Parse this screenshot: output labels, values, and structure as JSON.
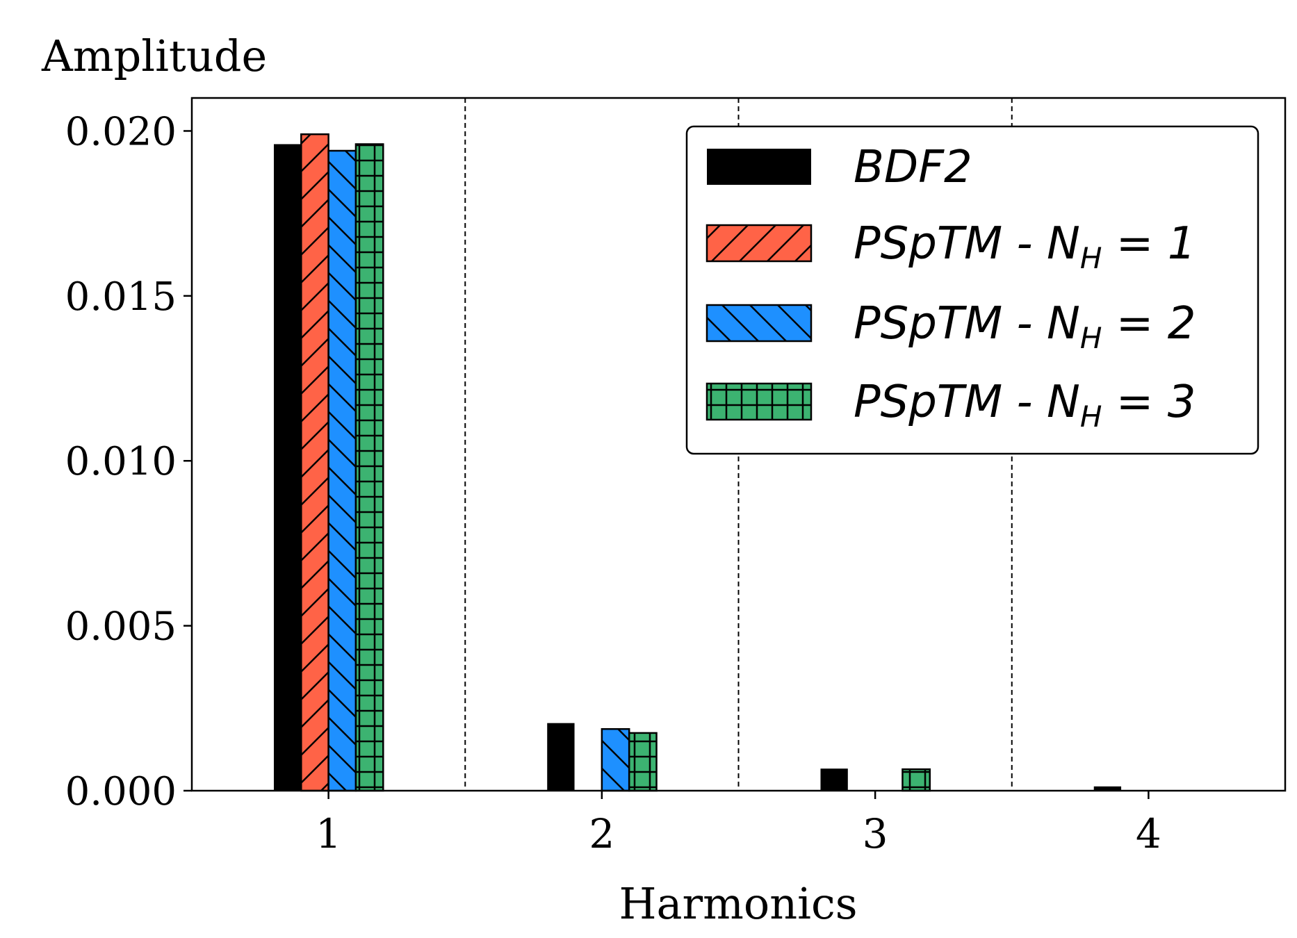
{
  "chart_data": {
    "type": "bar",
    "ylabel": "Amplitude",
    "xlabel": "Harmonics",
    "categories": [
      "1",
      "2",
      "3",
      "4"
    ],
    "xlim": [
      0.5,
      4.5
    ],
    "ylim": [
      0,
      0.021
    ],
    "yticks": [
      "0.000",
      "0.005",
      "0.010",
      "0.015",
      "0.020"
    ],
    "ytick_values": [
      0,
      0.005,
      0.01,
      0.015,
      0.02
    ],
    "grid": "dashed vertical separators between harmonics",
    "legend_position": "top-right",
    "series": [
      {
        "name": "BDF2",
        "color": "#000000",
        "hatch": "none",
        "values": [
          0.0196,
          0.00205,
          0.00067,
          0.00013
        ]
      },
      {
        "name": "PSpTM - N_H = 1",
        "color": "#ff6347",
        "hatch": "forward-diagonal",
        "values": [
          0.0199,
          0.0,
          0.0,
          0.0
        ]
      },
      {
        "name": "PSpTM - N_H = 2",
        "color": "#1e90ff",
        "hatch": "back-diagonal",
        "values": [
          0.0194,
          0.00187,
          0.0,
          0.0
        ]
      },
      {
        "name": "PSpTM - N_H = 3",
        "color": "#3cb371",
        "hatch": "grid",
        "values": [
          0.0196,
          0.00175,
          0.00065,
          0.0
        ]
      }
    ]
  }
}
